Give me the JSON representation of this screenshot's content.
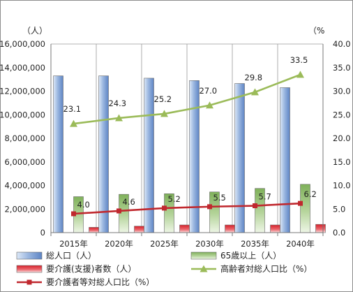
{
  "chart_data": {
    "type": "bar",
    "categories": [
      "2015年",
      "2020年",
      "2025年",
      "2030年",
      "2035年",
      "2040年"
    ],
    "left_axis": {
      "unit_label": "（人）",
      "ylim": [
        0,
        16000000
      ],
      "ticks": [
        "0",
        "2,000,000",
        "4,000,000",
        "6,000,000",
        "8,000,000",
        "10,000,000",
        "12,000,000",
        "14,000,000",
        "16,000,000"
      ]
    },
    "right_axis": {
      "unit_label": "（%",
      "ylim": [
        0,
        40
      ],
      "ticks": [
        "0.0",
        "5.0",
        "10.0",
        "15.0",
        "20.0",
        "25.0",
        "30.0",
        "35.0",
        "40.0"
      ]
    },
    "bar_series": [
      {
        "name": "総人口（人）",
        "color": "#9bb7e0",
        "values": [
          13300000,
          13300000,
          13100000,
          12900000,
          12650000,
          12300000
        ]
      },
      {
        "name": "65歳以上（人）",
        "color": "#9bc27a",
        "values": [
          3050000,
          3250000,
          3300000,
          3450000,
          3750000,
          4100000
        ]
      },
      {
        "name": "要介護(支援)者数（人）",
        "color": "#e8424a",
        "values": [
          450000,
          550000,
          650000,
          650000,
          650000,
          700000
        ]
      }
    ],
    "line_series": [
      {
        "name": "高齢者対総人口比（%）",
        "color": "#9bbb59",
        "marker": "triangle",
        "values": [
          23.1,
          24.3,
          25.2,
          27.0,
          29.8,
          33.5
        ],
        "labels": [
          "23.1",
          "24.3",
          "25.2",
          "27.0",
          "29.8",
          "33.5"
        ]
      },
      {
        "name": "要介護者等対総人口比（%）",
        "color": "#c0282e",
        "marker": "square",
        "values": [
          4.0,
          4.6,
          5.2,
          5.5,
          5.7,
          6.2
        ],
        "labels": [
          "4.0",
          "4.6",
          "5.2",
          "5.5",
          "5.7",
          "6.2"
        ]
      }
    ],
    "grid": "vertical",
    "legend_position": "bottom"
  }
}
